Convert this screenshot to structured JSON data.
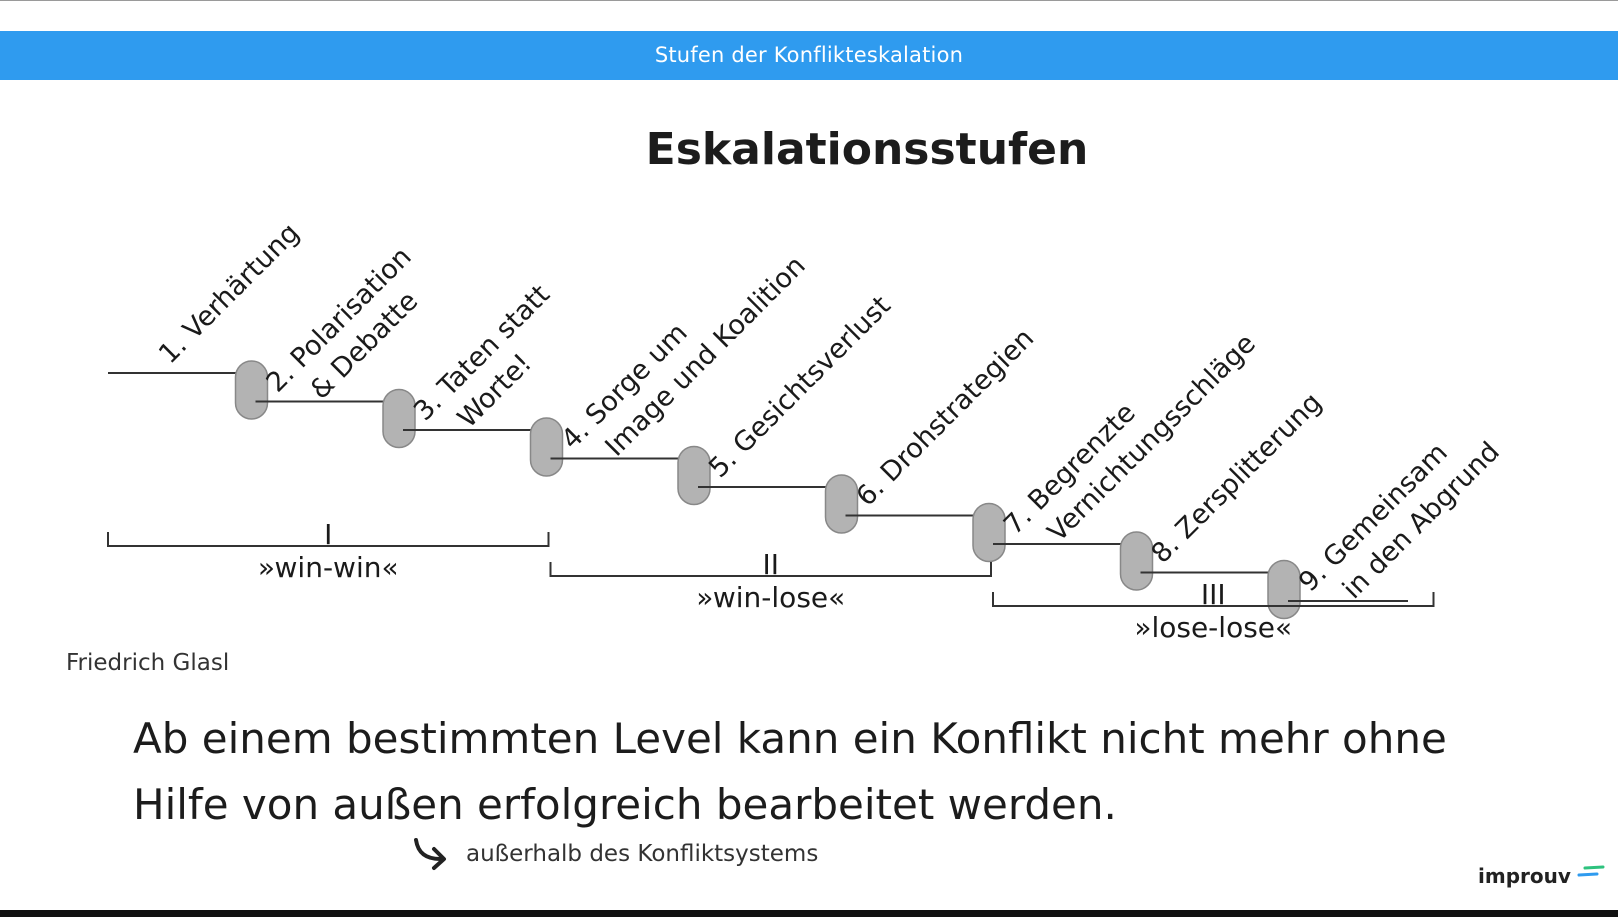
{
  "header": {
    "title": "Stufen der Konflikteskalation"
  },
  "main": {
    "heading": "Eskalationsstufen",
    "author": "Friedrich Glasl",
    "statement_line1": "Ab einem bestimmten Level kann ein Konflikt nicht mehr ohne",
    "statement_line2": "Hilfe von außen erfolgreich bearbeitet werden.",
    "note": "außerhalb des Konfliktsystems",
    "note_icon": "curved-arrow-icon",
    "logo_text": "improuv"
  },
  "diagram": {
    "stages": [
      {
        "number": 1,
        "lines": [
          "1. Verhärtung"
        ]
      },
      {
        "number": 2,
        "lines": [
          "2. Polarisation",
          "& Debatte"
        ]
      },
      {
        "number": 3,
        "lines": [
          "3. Taten statt",
          "Worte!"
        ]
      },
      {
        "number": 4,
        "lines": [
          "4. Sorge um",
          "Image und Koalition"
        ]
      },
      {
        "number": 5,
        "lines": [
          "5. Gesichtsverlust"
        ]
      },
      {
        "number": 6,
        "lines": [
          "6. Drohstrategien"
        ]
      },
      {
        "number": 7,
        "lines": [
          "7. Begrenzte",
          "Vernichtungsschläge"
        ]
      },
      {
        "number": 8,
        "lines": [
          "8. Zersplitterung"
        ]
      },
      {
        "number": 9,
        "lines": [
          "9. Gemeinsam",
          "in den Abgrund"
        ]
      }
    ],
    "phases": [
      {
        "numeral": "I",
        "label": "»win-win«",
        "stages": [
          1,
          3
        ]
      },
      {
        "numeral": "II",
        "label": "»win-lose«",
        "stages": [
          4,
          6
        ]
      },
      {
        "numeral": "III",
        "label": "»lose-lose«",
        "stages": [
          7,
          9
        ]
      }
    ]
  },
  "colors": {
    "header_bar": "#2f9bef",
    "step_knob": "#b3b3b3",
    "logo_accent_blue": "#2f9bef",
    "logo_accent_green": "#2ec27e"
  }
}
